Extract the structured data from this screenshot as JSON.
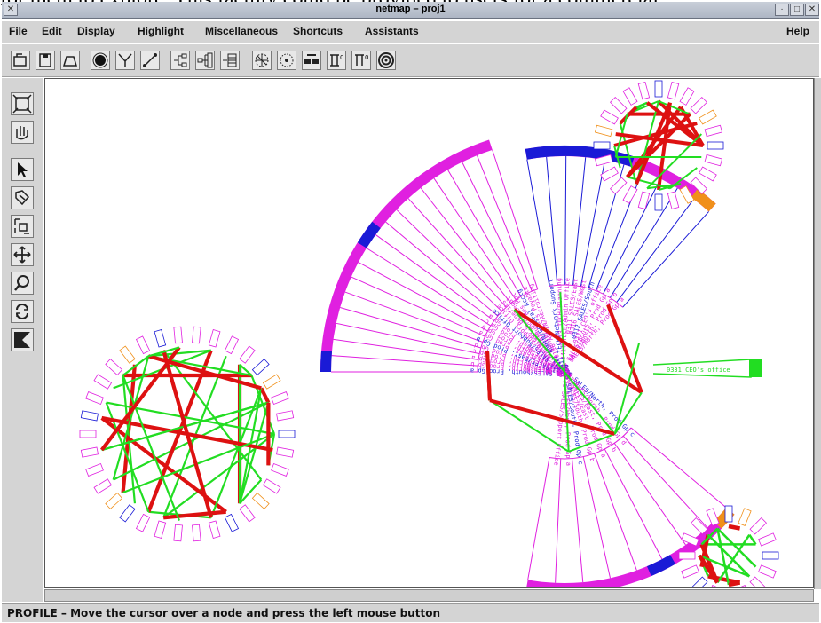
{
  "doc_fragment": "for them to explore. This facility could be provided to users for a commercial",
  "window": {
    "title": "netmap – proj1",
    "help": "Help"
  },
  "menus": [
    "File",
    "Edit",
    "Display",
    "Highlight",
    "Miscellaneous",
    "Shortcuts",
    "Assistants"
  ],
  "toolbar_icons": [
    "open-icon",
    "save-icon",
    "print-icon",
    "node-icon",
    "link-icon",
    "line-icon",
    "layout-tree-icon",
    "layout-hier-icon",
    "layout-grid-icon",
    "radar-icon",
    "cluster-icon",
    "split-icon",
    "filter-icon",
    "expand-icon",
    "target-icon"
  ],
  "side_tools": [
    "fit-view-icon",
    "pan-hand-icon",
    "pointer-icon",
    "select-icon",
    "zoom-box-icon",
    "move-icon",
    "zoom-icon",
    "rotate-icon",
    "slice-icon"
  ],
  "status": "PROFILE – Move the cursor over a node and press the left mouse button",
  "colors": {
    "blue": "#1a1ad6",
    "magenta": "#e020e0",
    "orange": "#f0901a",
    "green": "#22dd22",
    "red": "#dd1111"
  },
  "network": {
    "labels": [
      "0221 SALES/South, Prod Gp a",
      "0218 SALES/North, Prod Gp b",
      "0217 SALES/North, Prod Gp a",
      "0216 SALES/North, Prod Gp c",
      "0219 SALES/North, Prod Gp d",
      "0213 SALES/East, Prod Gp b",
      "0211 SALES/East, Prod Gp a",
      "0222 SALES/South, Prod Gp b",
      "0223 SALES/South, Prod Gp c",
      "0227 SALES/West, Prod Gp a",
      "0236 SALES/Support Office",
      "0330 SALES/Support Office",
      "0105 ADMIN/Gov & Benefits",
      "0111 ADMIN/Legal",
      "0121 ADMIN/Human Res Mgt",
      "0127 ADMIN/General Acctg",
      "0131 ADMIN/Accts Payable",
      "0116 ADMIN/Recruiting",
      "0411 TECH/Network Support",
      "0413 TECH/Planning",
      "0414 TECH/Admin Office",
      "0311 SALES/East",
      "0316 SALES/West",
      "0312 SALES/South",
      "0331 CEO's office"
    ]
  }
}
